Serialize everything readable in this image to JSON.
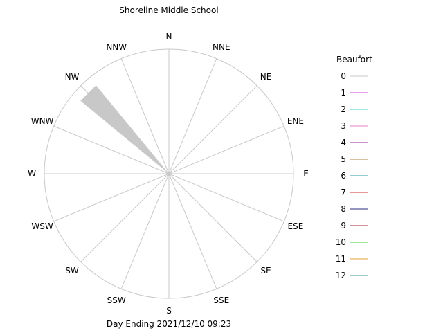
{
  "chart_data": {
    "type": "windrose",
    "title": "Shoreline Middle School",
    "subtitle": "Day Ending 2021/12/10 09:23",
    "directions": [
      "N",
      "NNE",
      "NE",
      "ENE",
      "E",
      "ESE",
      "SE",
      "SSE",
      "S",
      "SSW",
      "SW",
      "WSW",
      "W",
      "WNW",
      "NW",
      "NNW"
    ],
    "legend": {
      "title": "Beaufort",
      "placement": "right",
      "entries": [
        {
          "label": "0",
          "color": "#c8c8c8"
        },
        {
          "label": "1",
          "color": "#d23cd2"
        },
        {
          "label": "2",
          "color": "#3cd2d2"
        },
        {
          "label": "3",
          "color": "#e682c8"
        },
        {
          "label": "4",
          "color": "#8c2896"
        },
        {
          "label": "5",
          "color": "#b4823c"
        },
        {
          "label": "6",
          "color": "#2896a0"
        },
        {
          "label": "7",
          "color": "#c83232"
        },
        {
          "label": "8",
          "color": "#28287d"
        },
        {
          "label": "9",
          "color": "#a0283c"
        },
        {
          "label": "10",
          "color": "#3cd23c"
        },
        {
          "label": "11",
          "color": "#e6a03c"
        },
        {
          "label": "12",
          "color": "#3c9696"
        }
      ]
    },
    "series": [
      {
        "direction": "NW",
        "beaufort": "0",
        "fraction": 0.92
      }
    ],
    "grid": true
  }
}
